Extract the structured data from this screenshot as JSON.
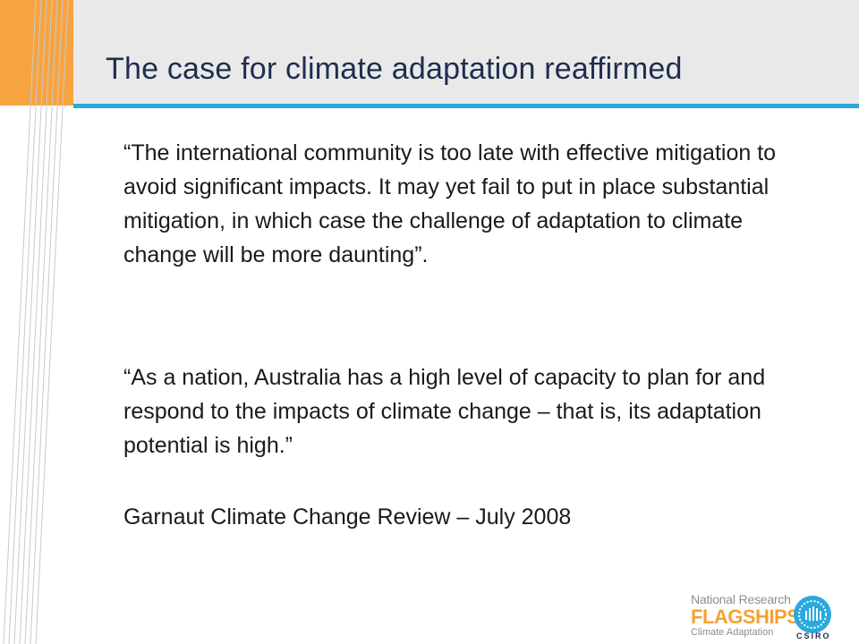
{
  "slide": {
    "title": "The case for climate adaptation reaffirmed",
    "quote1": "“The international community is too late with effective mitigation to avoid significant impacts. It may yet fail to put in place substantial mitigation, in which case the challenge of adaptation to climate change will be more daunting”.",
    "quote2": "“As a nation, Australia has a high level of capacity to plan for and respond to the impacts of climate change – that is, its adaptation potential is high.”",
    "citation": "Garnaut Climate Change Review – July 2008"
  },
  "logo": {
    "line1": "National Research",
    "line2": "FLAGSHIPS",
    "line3": "Climate Adaptation",
    "org": "CSIRO"
  },
  "colors": {
    "header_band": "#e9e9ea",
    "accent_orange": "#f7a440",
    "accent_blue": "#29a9dc",
    "title": "#1f2d4e"
  }
}
